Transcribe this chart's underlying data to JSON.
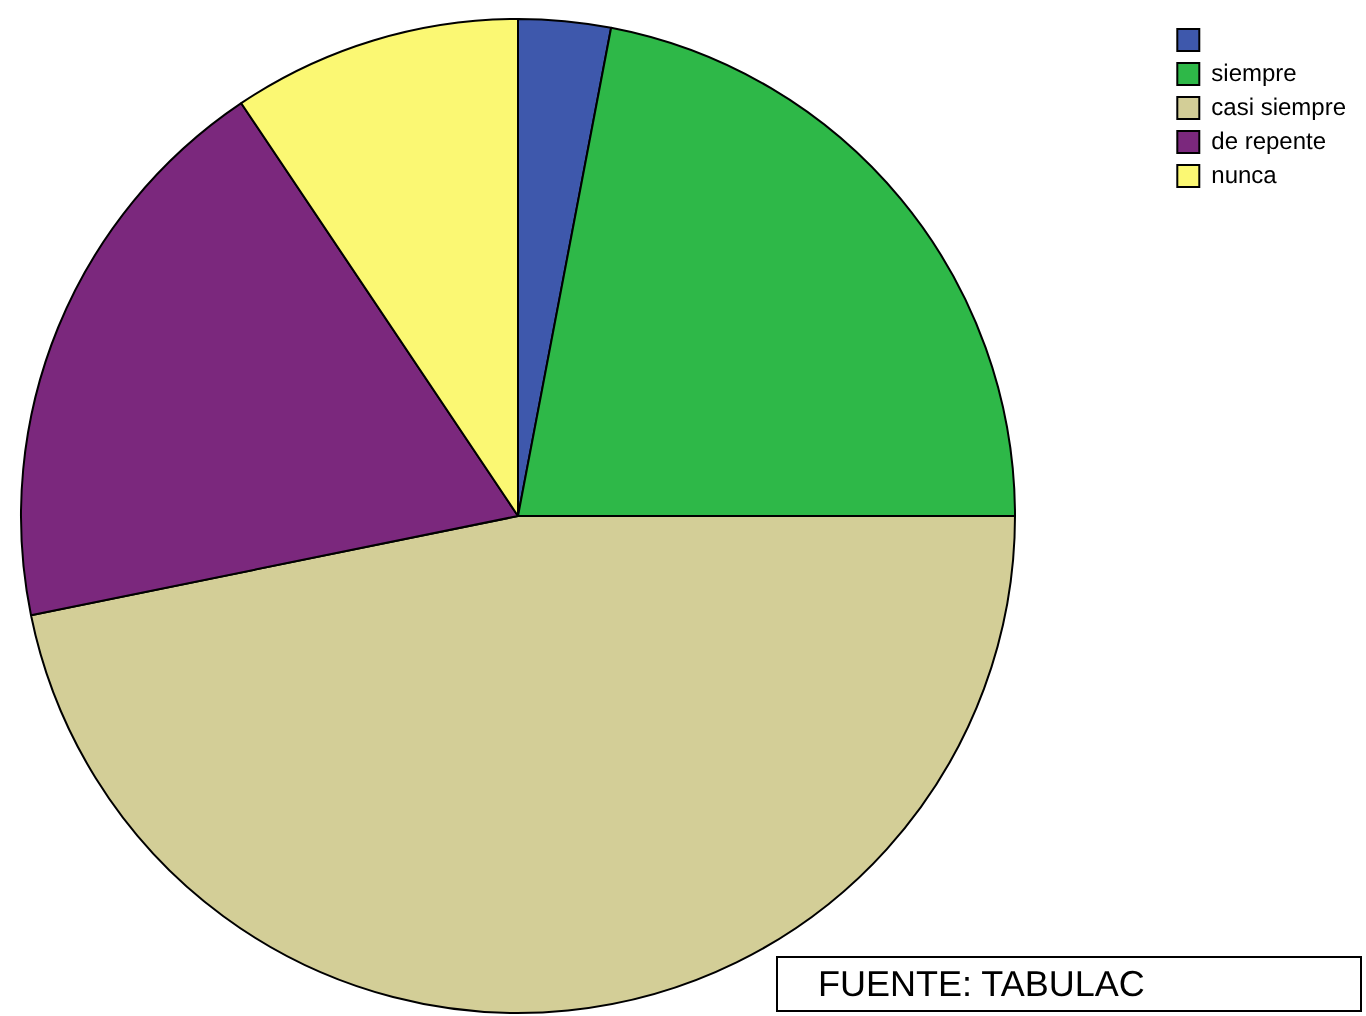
{
  "chart_data": {
    "type": "pie",
    "categories": [
      null,
      "siempre",
      "casi siempre",
      "de repente",
      "nunca"
    ],
    "values": [
      3.0,
      22.0,
      46.8,
      18.8,
      9.4
    ],
    "colors": [
      "#3e58ac",
      "#2eb848",
      "#d3ce97",
      "#7b287d",
      "#fbf873"
    ],
    "legend": "top right",
    "annotations": [
      "FUENTE: TABULAC"
    ]
  }
}
